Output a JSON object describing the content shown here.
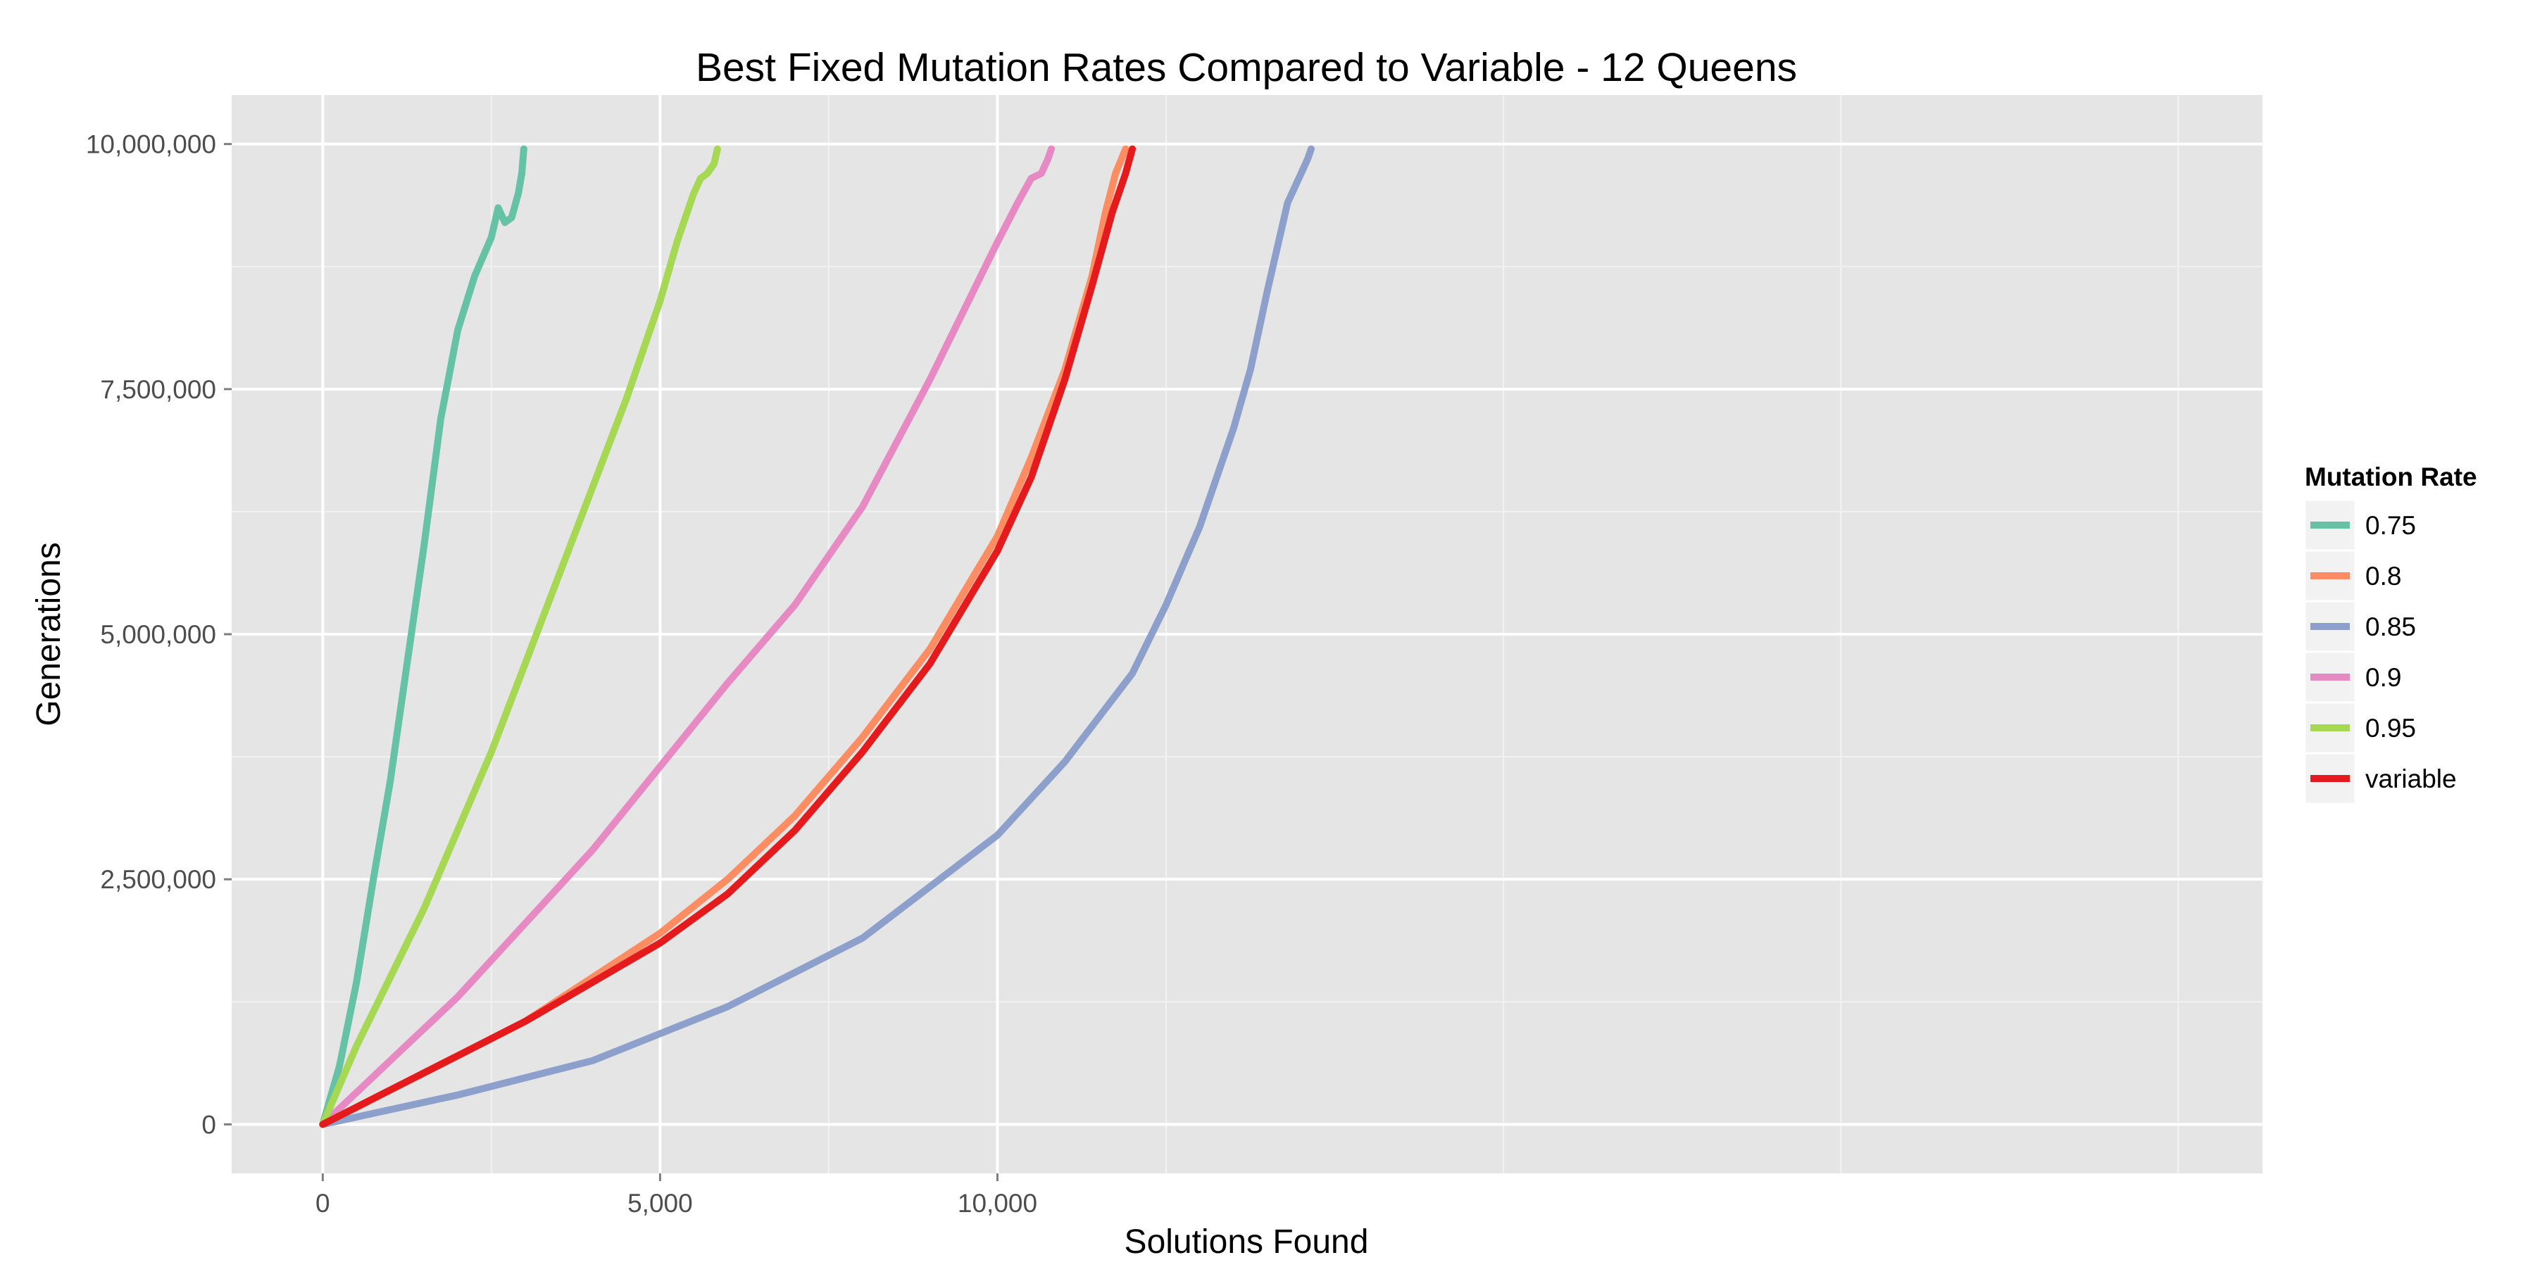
{
  "chart_data": {
    "type": "line",
    "title": "Best Fixed Mutation Rates Compared to Variable - 12 Queens",
    "xlabel": "Solutions Found",
    "ylabel": "Generations",
    "xlim": [
      -1350,
      28750
    ],
    "ylim": [
      -500000,
      10500000
    ],
    "x_ticks": [
      {
        "value": 0,
        "label": "0"
      },
      {
        "value": 5000,
        "label": "5,000"
      },
      {
        "value": 10000,
        "label": "10,000"
      }
    ],
    "y_ticks": [
      {
        "value": 0,
        "label": "0"
      },
      {
        "value": 2500000,
        "label": "2,500,000"
      },
      {
        "value": 5000000,
        "label": "5,000,000"
      },
      {
        "value": 7500000,
        "label": "7,500,000"
      },
      {
        "value": 10000000,
        "label": "10,000,000"
      }
    ],
    "grid": true,
    "legend": {
      "title": "Mutation Rate",
      "position": "right"
    },
    "series": [
      {
        "name": "0.75",
        "color": "#66c2a5",
        "x": [
          0,
          250,
          500,
          750,
          1000,
          1250,
          1500,
          1750,
          2000,
          2250,
          2500,
          2600,
          2700,
          2800,
          2900,
          2950,
          2980
        ],
        "y": [
          0,
          600000,
          1450000,
          2500000,
          3500000,
          4700000,
          5900000,
          7200000,
          8100000,
          8650000,
          9050000,
          9350000,
          9200000,
          9250000,
          9500000,
          9700000,
          9950000
        ]
      },
      {
        "name": "0.8",
        "color": "#fc8d62",
        "x": [
          0,
          1000,
          2000,
          3000,
          4000,
          5000,
          6000,
          7000,
          8000,
          9000,
          10000,
          10500,
          11000,
          11400,
          11600,
          11750,
          11900
        ],
        "y": [
          0,
          350000,
          700000,
          1050000,
          1500000,
          1950000,
          2500000,
          3150000,
          3950000,
          4850000,
          6000000,
          6800000,
          7700000,
          8650000,
          9300000,
          9700000,
          9950000
        ]
      },
      {
        "name": "0.85",
        "color": "#8da0cb",
        "x": [
          0,
          2000,
          4000,
          6000,
          8000,
          10000,
          11000,
          12000,
          12500,
          13000,
          13500,
          13750,
          14000,
          14300,
          14500,
          14600,
          14650
        ],
        "y": [
          0,
          300000,
          650000,
          1200000,
          1900000,
          2950000,
          3700000,
          4600000,
          5300000,
          6100000,
          7100000,
          7700000,
          8500000,
          9400000,
          9700000,
          9850000,
          9950000
        ]
      },
      {
        "name": "0.9",
        "color": "#e78ac3",
        "x": [
          0,
          1000,
          2000,
          3000,
          4000,
          5000,
          6000,
          7000,
          8000,
          9000,
          9500,
          10000,
          10300,
          10500,
          10650,
          10750,
          10800
        ],
        "y": [
          0,
          650000,
          1300000,
          2050000,
          2800000,
          3650000,
          4500000,
          5300000,
          6300000,
          7600000,
          8300000,
          9000000,
          9400000,
          9650000,
          9700000,
          9850000,
          9950000
        ]
      },
      {
        "name": "0.95",
        "color": "#a6d854",
        "x": [
          0,
          500,
          1000,
          1500,
          2000,
          2500,
          3000,
          3500,
          4000,
          4500,
          5000,
          5250,
          5500,
          5600,
          5700,
          5800,
          5850
        ],
        "y": [
          0,
          800000,
          1500000,
          2200000,
          3000000,
          3800000,
          4700000,
          5600000,
          6500000,
          7400000,
          8400000,
          9000000,
          9500000,
          9650000,
          9700000,
          9800000,
          9950000
        ]
      },
      {
        "name": "variable",
        "color": "#e41a1c",
        "x": [
          0,
          1000,
          2000,
          3000,
          4000,
          5000,
          6000,
          7000,
          8000,
          9000,
          10000,
          10500,
          11000,
          11400,
          11700,
          11900,
          12000
        ],
        "y": [
          0,
          350000,
          700000,
          1050000,
          1450000,
          1850000,
          2350000,
          3000000,
          3800000,
          4700000,
          5850000,
          6600000,
          7600000,
          8550000,
          9300000,
          9700000,
          9950000
        ]
      }
    ]
  }
}
